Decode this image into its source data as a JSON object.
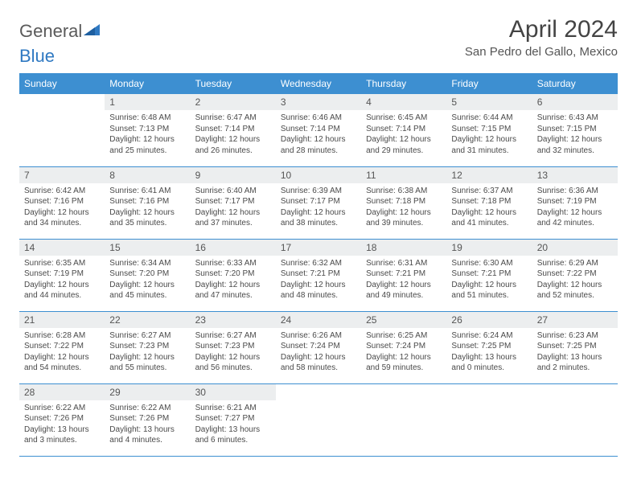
{
  "logo": {
    "text_a": "General",
    "text_b": "Blue",
    "color_a": "#6a6a6a",
    "color_b": "#2f79c2"
  },
  "title": "April 2024",
  "location": "San Pedro del Gallo, Mexico",
  "colors": {
    "header_bg": "#3d8fd1",
    "header_text": "#ffffff",
    "daynum_bg": "#eceeef",
    "text": "#4a4a4a",
    "row_border": "#3d8fd1",
    "background": "#ffffff"
  },
  "typography": {
    "title_fontsize": 30,
    "location_fontsize": 15,
    "header_fontsize": 12,
    "daynum_fontsize": 12,
    "body_fontsize": 10
  },
  "weekdays": [
    "Sunday",
    "Monday",
    "Tuesday",
    "Wednesday",
    "Thursday",
    "Friday",
    "Saturday"
  ],
  "weeks": [
    [
      {
        "n": "",
        "sr": "",
        "ss": "",
        "dl": "",
        "empty": true
      },
      {
        "n": "1",
        "sr": "Sunrise: 6:48 AM",
        "ss": "Sunset: 7:13 PM",
        "dl": "Daylight: 12 hours and 25 minutes."
      },
      {
        "n": "2",
        "sr": "Sunrise: 6:47 AM",
        "ss": "Sunset: 7:14 PM",
        "dl": "Daylight: 12 hours and 26 minutes."
      },
      {
        "n": "3",
        "sr": "Sunrise: 6:46 AM",
        "ss": "Sunset: 7:14 PM",
        "dl": "Daylight: 12 hours and 28 minutes."
      },
      {
        "n": "4",
        "sr": "Sunrise: 6:45 AM",
        "ss": "Sunset: 7:14 PM",
        "dl": "Daylight: 12 hours and 29 minutes."
      },
      {
        "n": "5",
        "sr": "Sunrise: 6:44 AM",
        "ss": "Sunset: 7:15 PM",
        "dl": "Daylight: 12 hours and 31 minutes."
      },
      {
        "n": "6",
        "sr": "Sunrise: 6:43 AM",
        "ss": "Sunset: 7:15 PM",
        "dl": "Daylight: 12 hours and 32 minutes."
      }
    ],
    [
      {
        "n": "7",
        "sr": "Sunrise: 6:42 AM",
        "ss": "Sunset: 7:16 PM",
        "dl": "Daylight: 12 hours and 34 minutes."
      },
      {
        "n": "8",
        "sr": "Sunrise: 6:41 AM",
        "ss": "Sunset: 7:16 PM",
        "dl": "Daylight: 12 hours and 35 minutes."
      },
      {
        "n": "9",
        "sr": "Sunrise: 6:40 AM",
        "ss": "Sunset: 7:17 PM",
        "dl": "Daylight: 12 hours and 37 minutes."
      },
      {
        "n": "10",
        "sr": "Sunrise: 6:39 AM",
        "ss": "Sunset: 7:17 PM",
        "dl": "Daylight: 12 hours and 38 minutes."
      },
      {
        "n": "11",
        "sr": "Sunrise: 6:38 AM",
        "ss": "Sunset: 7:18 PM",
        "dl": "Daylight: 12 hours and 39 minutes."
      },
      {
        "n": "12",
        "sr": "Sunrise: 6:37 AM",
        "ss": "Sunset: 7:18 PM",
        "dl": "Daylight: 12 hours and 41 minutes."
      },
      {
        "n": "13",
        "sr": "Sunrise: 6:36 AM",
        "ss": "Sunset: 7:19 PM",
        "dl": "Daylight: 12 hours and 42 minutes."
      }
    ],
    [
      {
        "n": "14",
        "sr": "Sunrise: 6:35 AM",
        "ss": "Sunset: 7:19 PM",
        "dl": "Daylight: 12 hours and 44 minutes."
      },
      {
        "n": "15",
        "sr": "Sunrise: 6:34 AM",
        "ss": "Sunset: 7:20 PM",
        "dl": "Daylight: 12 hours and 45 minutes."
      },
      {
        "n": "16",
        "sr": "Sunrise: 6:33 AM",
        "ss": "Sunset: 7:20 PM",
        "dl": "Daylight: 12 hours and 47 minutes."
      },
      {
        "n": "17",
        "sr": "Sunrise: 6:32 AM",
        "ss": "Sunset: 7:21 PM",
        "dl": "Daylight: 12 hours and 48 minutes."
      },
      {
        "n": "18",
        "sr": "Sunrise: 6:31 AM",
        "ss": "Sunset: 7:21 PM",
        "dl": "Daylight: 12 hours and 49 minutes."
      },
      {
        "n": "19",
        "sr": "Sunrise: 6:30 AM",
        "ss": "Sunset: 7:21 PM",
        "dl": "Daylight: 12 hours and 51 minutes."
      },
      {
        "n": "20",
        "sr": "Sunrise: 6:29 AM",
        "ss": "Sunset: 7:22 PM",
        "dl": "Daylight: 12 hours and 52 minutes."
      }
    ],
    [
      {
        "n": "21",
        "sr": "Sunrise: 6:28 AM",
        "ss": "Sunset: 7:22 PM",
        "dl": "Daylight: 12 hours and 54 minutes."
      },
      {
        "n": "22",
        "sr": "Sunrise: 6:27 AM",
        "ss": "Sunset: 7:23 PM",
        "dl": "Daylight: 12 hours and 55 minutes."
      },
      {
        "n": "23",
        "sr": "Sunrise: 6:27 AM",
        "ss": "Sunset: 7:23 PM",
        "dl": "Daylight: 12 hours and 56 minutes."
      },
      {
        "n": "24",
        "sr": "Sunrise: 6:26 AM",
        "ss": "Sunset: 7:24 PM",
        "dl": "Daylight: 12 hours and 58 minutes."
      },
      {
        "n": "25",
        "sr": "Sunrise: 6:25 AM",
        "ss": "Sunset: 7:24 PM",
        "dl": "Daylight: 12 hours and 59 minutes."
      },
      {
        "n": "26",
        "sr": "Sunrise: 6:24 AM",
        "ss": "Sunset: 7:25 PM",
        "dl": "Daylight: 13 hours and 0 minutes."
      },
      {
        "n": "27",
        "sr": "Sunrise: 6:23 AM",
        "ss": "Sunset: 7:25 PM",
        "dl": "Daylight: 13 hours and 2 minutes."
      }
    ],
    [
      {
        "n": "28",
        "sr": "Sunrise: 6:22 AM",
        "ss": "Sunset: 7:26 PM",
        "dl": "Daylight: 13 hours and 3 minutes."
      },
      {
        "n": "29",
        "sr": "Sunrise: 6:22 AM",
        "ss": "Sunset: 7:26 PM",
        "dl": "Daylight: 13 hours and 4 minutes."
      },
      {
        "n": "30",
        "sr": "Sunrise: 6:21 AM",
        "ss": "Sunset: 7:27 PM",
        "dl": "Daylight: 13 hours and 6 minutes."
      },
      {
        "n": "",
        "sr": "",
        "ss": "",
        "dl": "",
        "empty": true
      },
      {
        "n": "",
        "sr": "",
        "ss": "",
        "dl": "",
        "empty": true
      },
      {
        "n": "",
        "sr": "",
        "ss": "",
        "dl": "",
        "empty": true
      },
      {
        "n": "",
        "sr": "",
        "ss": "",
        "dl": "",
        "empty": true
      }
    ]
  ]
}
